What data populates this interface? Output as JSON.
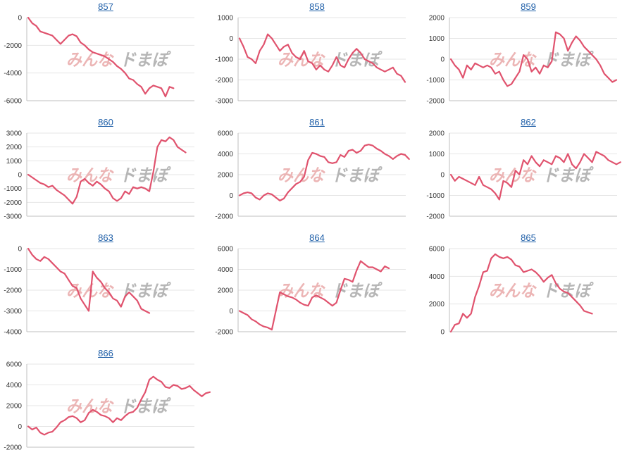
{
  "colors": {
    "line": "#e0536e",
    "grid": "#e6e6e6",
    "axis": "#bfbfbf",
    "title": "#1f5fa8",
    "watermark_left": "#e9a9a9",
    "watermark_right": "#aaaaaa"
  },
  "watermark": {
    "left": "みんな",
    "right": "ドまぽ"
  },
  "chart_data": [
    {
      "type": "line",
      "title": "857",
      "ylim": [
        -6000,
        0
      ],
      "yticks": [
        0,
        -2000,
        -4000,
        -6000
      ],
      "values": [
        0,
        -400,
        -600,
        -1000,
        -1100,
        -1200,
        -1300,
        -1600,
        -1900,
        -1600,
        -1300,
        -1200,
        -1350,
        -1800,
        -2000,
        -2300,
        -2500,
        -2600,
        -2700,
        -2800,
        -3000,
        -3200,
        -3500,
        -3700,
        -4000,
        -4400,
        -4500,
        -4800,
        -5000,
        -5500,
        -5100,
        -4900,
        -5000,
        -5100,
        -5700,
        -5000,
        -5100
      ]
    },
    {
      "type": "line",
      "title": "858",
      "ylim": [
        -3000,
        1000
      ],
      "yticks": [
        1000,
        0,
        -1000,
        -2000,
        -3000
      ],
      "values": [
        0,
        -400,
        -900,
        -1000,
        -1200,
        -600,
        -300,
        200,
        0,
        -300,
        -600,
        -400,
        -300,
        -700,
        -900,
        -1000,
        -600,
        -1100,
        -1200,
        -1500,
        -1300,
        -1500,
        -1600,
        -1300,
        -900,
        -1300,
        -1400,
        -1000,
        -700,
        -500,
        -700,
        -1000,
        -1100,
        -1200,
        -1400,
        -1500,
        -1600,
        -1500,
        -1400,
        -1700,
        -1800,
        -2100
      ]
    },
    {
      "type": "line",
      "title": "859",
      "ylim": [
        -2000,
        2000
      ],
      "yticks": [
        2000,
        1000,
        0,
        -1000,
        -2000
      ],
      "values": [
        0,
        -300,
        -500,
        -900,
        -300,
        -500,
        -200,
        -300,
        -400,
        -300,
        -400,
        -700,
        -600,
        -1000,
        -1300,
        -1200,
        -900,
        -600,
        200,
        0,
        -600,
        -400,
        -700,
        -300,
        -400,
        -100,
        1300,
        1200,
        1000,
        400,
        800,
        1100,
        900,
        600,
        400,
        200,
        0,
        -300,
        -700,
        -900,
        -1100,
        -1000
      ]
    },
    {
      "type": "line",
      "title": "860",
      "ylim": [
        -3000,
        3000
      ],
      "yticks": [
        3000,
        2000,
        1000,
        0,
        -1000,
        -2000,
        -3000
      ],
      "values": [
        0,
        -200,
        -400,
        -600,
        -700,
        -900,
        -800,
        -1100,
        -1300,
        -1500,
        -1800,
        -2100,
        -1600,
        -500,
        -300,
        -600,
        -800,
        -500,
        -700,
        -1000,
        -1200,
        -1700,
        -1900,
        -1700,
        -1200,
        -1400,
        -900,
        -1000,
        -900,
        -1000,
        -1200,
        200,
        2000,
        2500,
        2400,
        2700,
        2500,
        2000,
        1800,
        1600
      ]
    },
    {
      "type": "line",
      "title": "861",
      "ylim": [
        -2000,
        6000
      ],
      "yticks": [
        6000,
        4000,
        2000,
        0,
        -2000
      ],
      "values": [
        0,
        200,
        300,
        200,
        -200,
        -400,
        0,
        200,
        100,
        -200,
        -500,
        -300,
        300,
        700,
        1100,
        1300,
        1800,
        3400,
        4100,
        4000,
        3800,
        3700,
        3200,
        3100,
        3200,
        3900,
        3700,
        4300,
        4400,
        4100,
        4300,
        4800,
        4900,
        4800,
        4500,
        4300,
        4000,
        3800,
        3500,
        3800,
        4000,
        3900,
        3500
      ]
    },
    {
      "type": "line",
      "title": "862",
      "ylim": [
        -2000,
        2000
      ],
      "yticks": [
        2000,
        1000,
        0,
        -1000,
        -2000
      ],
      "values": [
        0,
        -300,
        -100,
        -200,
        -300,
        -400,
        -500,
        -100,
        -500,
        -600,
        -700,
        -900,
        -1200,
        -300,
        -400,
        -600,
        200,
        0,
        700,
        500,
        900,
        600,
        400,
        700,
        600,
        500,
        900,
        800,
        600,
        1000,
        500,
        300,
        600,
        1000,
        800,
        600,
        1100,
        1000,
        900,
        700,
        600,
        500,
        600
      ]
    },
    {
      "type": "line",
      "title": "863",
      "ylim": [
        -4000,
        0
      ],
      "yticks": [
        0,
        -1000,
        -2000,
        -3000,
        -4000
      ],
      "values": [
        0,
        -300,
        -500,
        -600,
        -400,
        -500,
        -700,
        -900,
        -1100,
        -1200,
        -1500,
        -1800,
        -1900,
        -2400,
        -2700,
        -3000,
        -1100,
        -1400,
        -1600,
        -1900,
        -2100,
        -2400,
        -2500,
        -2800,
        -2300,
        -2100,
        -2300,
        -2500,
        -2900,
        -3000,
        -3100
      ]
    },
    {
      "type": "line",
      "title": "864",
      "ylim": [
        -2000,
        6000
      ],
      "yticks": [
        6000,
        4000,
        2000,
        0,
        -2000
      ],
      "values": [
        0,
        -200,
        -400,
        -800,
        -1000,
        -1300,
        -1500,
        -1600,
        -1800,
        0,
        1800,
        1600,
        1400,
        1300,
        1100,
        800,
        600,
        500,
        1300,
        1500,
        1300,
        1100,
        800,
        500,
        800,
        2000,
        3100,
        3000,
        2800,
        3900,
        4800,
        4500,
        4200,
        4200,
        4000,
        3800,
        4300,
        4100
      ]
    },
    {
      "type": "line",
      "title": "865",
      "ylim": [
        0,
        6000
      ],
      "yticks": [
        6000,
        4000,
        2000,
        0
      ],
      "values": [
        0,
        500,
        600,
        1300,
        1000,
        1300,
        2500,
        3300,
        4300,
        4400,
        5300,
        5600,
        5400,
        5300,
        5400,
        5200,
        4800,
        4700,
        4300,
        4400,
        4500,
        4300,
        4000,
        3600,
        3900,
        4100,
        3500,
        3100,
        2900,
        2800,
        2500,
        2200,
        1900,
        1500,
        1400,
        1300
      ]
    },
    {
      "type": "line",
      "title": "866",
      "ylim": [
        -2000,
        6000
      ],
      "yticks": [
        6000,
        4000,
        2000,
        0,
        -2000
      ],
      "values": [
        0,
        -300,
        -100,
        -600,
        -800,
        -600,
        -500,
        -100,
        400,
        600,
        900,
        1000,
        800,
        400,
        600,
        1300,
        1600,
        1400,
        1100,
        1000,
        800,
        400,
        800,
        600,
        1000,
        1300,
        1400,
        1800,
        2600,
        3300,
        4500,
        4800,
        4500,
        4300,
        3800,
        3700,
        4000,
        3900,
        3600,
        3700,
        3900,
        3500,
        3200,
        2900,
        3200,
        3300
      ]
    }
  ]
}
